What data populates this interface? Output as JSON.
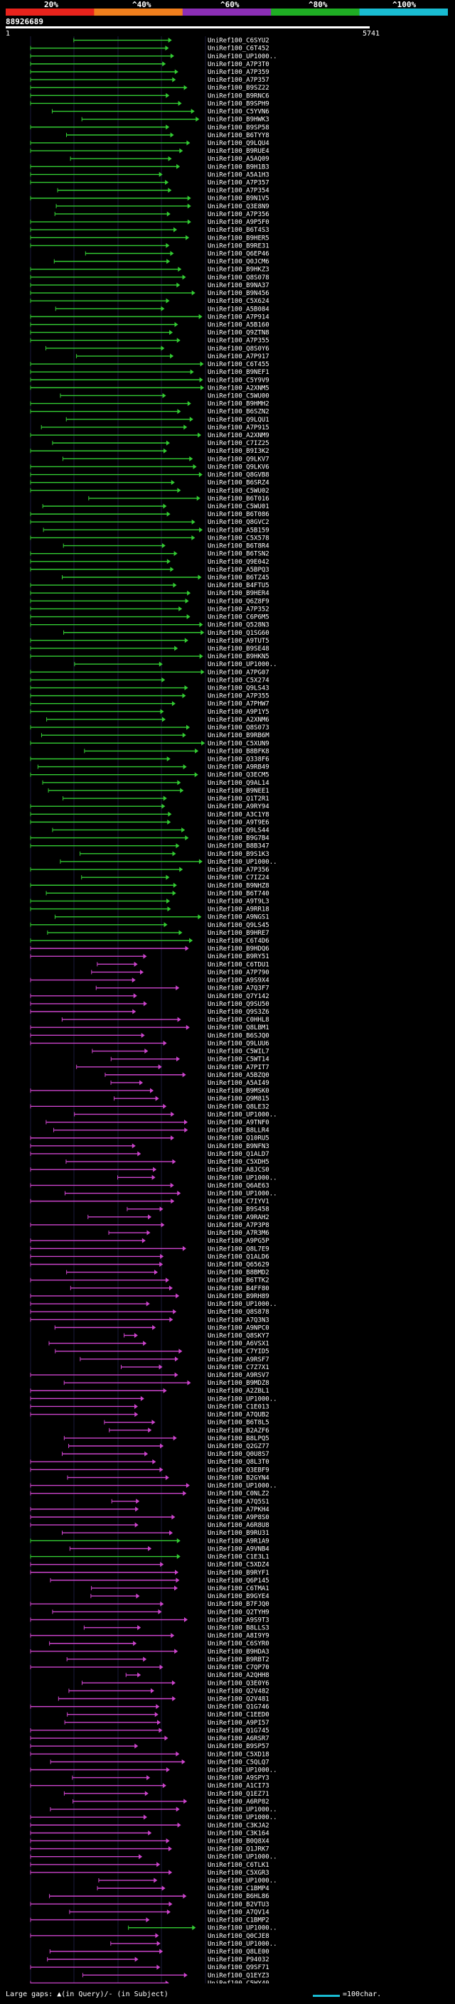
{
  "colors": {
    "background": "#000000",
    "bar_colors": [
      "#e8231c",
      "#f07f1d",
      "#8b2eb5",
      "#1fae24",
      "#19bcd2"
    ],
    "hit_purple": "#cc44cc",
    "hit_green": "#33cc33",
    "scale_swatch": "#19bcd2"
  },
  "legend": {
    "pct_labels": [
      "20%",
      "^40%",
      "^60%",
      "^80%",
      "^100%"
    ]
  },
  "query": {
    "id": "88926689",
    "start": "1",
    "end": "5741"
  },
  "footer": {
    "left_text": "Large gaps: ▲(in Query)/- (in Subject)",
    "scale_text": "=100char."
  },
  "chart_data": {
    "type": "alignment-overview",
    "x_range": [
      1,
      5741
    ],
    "hits": []
  }
}
